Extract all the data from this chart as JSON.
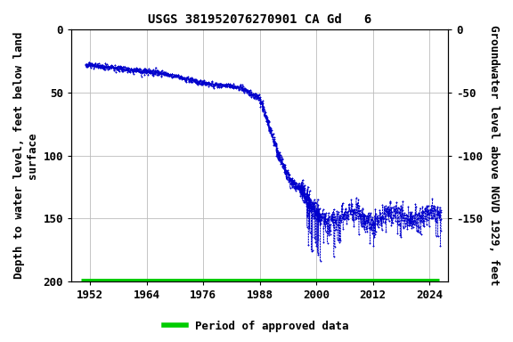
{
  "title": "USGS 381952076270901 CA Gd   6",
  "ylabel_left": "Depth to water level, feet below land\nsurface",
  "ylabel_right": "Groundwater level above NGVD 1929, feet",
  "ylim_left": [
    200,
    0
  ],
  "yticks_left": [
    0,
    50,
    100,
    150,
    200
  ],
  "yticks_right_labels": [
    "0",
    "-50",
    "-100",
    "-150"
  ],
  "yticks_right_pos": [
    0,
    50,
    100,
    150
  ],
  "xlim": [
    1948,
    2028
  ],
  "xticks": [
    1952,
    1964,
    1976,
    1988,
    2000,
    2012,
    2024
  ],
  "data_color": "#0000CC",
  "approved_color": "#00CC00",
  "background_color": "#ffffff",
  "fig_bg_color": "#ffffff",
  "grid_color": "#bbbbbb",
  "title_fontsize": 10,
  "axis_fontsize": 9,
  "tick_fontsize": 9,
  "legend_label": "Period of approved data"
}
